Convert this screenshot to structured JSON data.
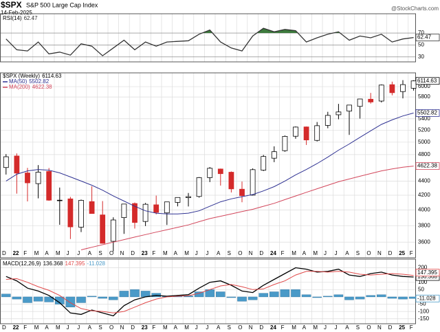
{
  "header": {
    "symbol": "$SPX",
    "name": "S&P 500 Large Cap Index",
    "date": "14-Feb-2025",
    "source": "@StockCharts.com"
  },
  "chart_data": [
    {
      "type": "line",
      "title": "RSI(14)",
      "ylim": [
        24,
        100
      ],
      "yticks": [
        30,
        50,
        70
      ],
      "overbought": 70,
      "overbought_color": "#3d7a3d",
      "grid": true,
      "series": [
        {
          "name": "RSI(14)",
          "color": "#333333",
          "values": [
            60,
            42,
            40,
            55,
            35,
            38,
            33,
            52,
            48,
            32,
            45,
            58,
            42,
            55,
            48,
            55,
            56,
            57,
            68,
            75,
            55,
            45,
            40,
            65,
            78,
            72,
            76,
            74,
            55,
            62,
            68,
            72,
            58,
            65,
            62,
            68,
            55,
            60,
            62.47
          ]
        }
      ]
    },
    {
      "type": "candlestick",
      "log_scale": true,
      "grid": true,
      "ylim": [
        3490,
        6180
      ],
      "yticks": [
        3600,
        3800,
        4000,
        4200,
        4400,
        4800,
        5000,
        5200,
        5400,
        5800,
        6000
      ],
      "categories": [
        "D",
        "22",
        "F",
        "M",
        "A",
        "M",
        "J",
        "J",
        "A",
        "S",
        "O",
        "N",
        "D",
        "23",
        "F",
        "M",
        "A",
        "M",
        "J",
        "J",
        "A",
        "S",
        "O",
        "N",
        "D",
        "24",
        "F",
        "M",
        "A",
        "M",
        "J",
        "J",
        "A",
        "S",
        "O",
        "N",
        "D",
        "25",
        "F"
      ],
      "candles": {
        "name": "$SPX (Weekly)",
        "up_color": "#000000",
        "down_color": "#d42a2a",
        "open": [
          4600,
          4778,
          4519,
          4363,
          4541,
          4130,
          4150,
          3781,
          4113,
          3937,
          3610,
          3902,
          4087,
          3853,
          4070,
          3963,
          4102,
          4166,
          4183,
          4450,
          4578,
          4530,
          4284,
          4201,
          4560,
          4743,
          4862,
          5098,
          5257,
          5029,
          5283,
          5471,
          5537,
          5624,
          5758,
          5723,
          6040,
          5904,
          5969
        ],
        "high": [
          4808,
          4818,
          4595,
          4637,
          4593,
          4307,
          4177,
          4140,
          4325,
          4120,
          3906,
          4080,
          4101,
          4095,
          4195,
          4110,
          4170,
          4231,
          4458,
          4607,
          4584,
          4541,
          4393,
          4587,
          4794,
          4932,
          5111,
          5265,
          5264,
          5342,
          5524,
          5670,
          5652,
          5767,
          5878,
          6044,
          6100,
          6129,
          6128
        ],
        "low": [
          4495,
          4222,
          4115,
          4157,
          4124,
          3811,
          3637,
          3721,
          3955,
          3585,
          3492,
          3699,
          3764,
          3795,
          3944,
          3809,
          4049,
          4048,
          4167,
          4385,
          4335,
          4238,
          4104,
          4197,
          4547,
          4682,
          4845,
          5056,
          4954,
          5012,
          5234,
          5390,
          5120,
          5403,
          5675,
          5697,
          5832,
          5774,
          5923
        ],
        "close": [
          4766,
          4516,
          4374,
          4530,
          4132,
          4132,
          3785,
          4130,
          3955,
          3586,
          3872,
          4080,
          3840,
          4077,
          3970,
          4109,
          4169,
          4180,
          4450,
          4589,
          4508,
          4288,
          4194,
          4568,
          4770,
          4846,
          5096,
          5254,
          5036,
          5278,
          5460,
          5522,
          5648,
          5762,
          5705,
          6032,
          5882,
          6041,
          6114.63
        ]
      },
      "series": [
        {
          "name": "MA(50)",
          "color": "#2e3192",
          "values": [
            4400,
            4500,
            4550,
            4570,
            4560,
            4520,
            4460,
            4400,
            4340,
            4270,
            4190,
            4120,
            4050,
            3990,
            3960,
            3950,
            3950,
            3960,
            3990,
            4050,
            4110,
            4150,
            4180,
            4210,
            4260,
            4320,
            4400,
            4490,
            4570,
            4660,
            4760,
            4870,
            4970,
            5080,
            5190,
            5300,
            5380,
            5450,
            5502.82
          ]
        },
        {
          "name": "MA(200)",
          "color": "#d2455a",
          "values": [
            null,
            null,
            null,
            null,
            null,
            null,
            null,
            3510,
            3540,
            3570,
            3600,
            3630,
            3660,
            3690,
            3720,
            3750,
            3780,
            3810,
            3850,
            3890,
            3920,
            3950,
            3980,
            4010,
            4050,
            4090,
            4140,
            4190,
            4240,
            4290,
            4340,
            4390,
            4430,
            4470,
            4510,
            4550,
            4580,
            4605,
            4622.38
          ]
        }
      ]
    },
    {
      "type": "line",
      "title": "MACD(12,26,9)",
      "grid": true,
      "ylim": [
        -170,
        240
      ],
      "yticks": [
        -150,
        -100,
        -50,
        50,
        100,
        200
      ],
      "categories": [
        "D",
        "22",
        "F",
        "M",
        "A",
        "M",
        "J",
        "J",
        "A",
        "S",
        "O",
        "N",
        "D",
        "23",
        "F",
        "M",
        "A",
        "M",
        "J",
        "J",
        "A",
        "S",
        "O",
        "N",
        "D",
        "24",
        "F",
        "M",
        "A",
        "M",
        "J",
        "J",
        "A",
        "S",
        "O",
        "N",
        "D",
        "25",
        "F"
      ],
      "series": [
        {
          "name": "MACD(12,26,9)",
          "color": "#000000",
          "values": [
            140,
            110,
            60,
            40,
            10,
            -40,
            -110,
            -120,
            -90,
            -110,
            -130,
            -60,
            -20,
            0,
            10,
            5,
            10,
            15,
            60,
            100,
            110,
            80,
            40,
            30,
            80,
            120,
            160,
            200,
            190,
            170,
            175,
            190,
            150,
            140,
            160,
            170,
            150,
            140,
            136.368
          ]
        },
        {
          "color": "#e04848",
          "values": [
            120,
            125,
            100,
            70,
            45,
            10,
            -40,
            -80,
            -95,
            -100,
            -110,
            -100,
            -70,
            -40,
            -15,
            0,
            5,
            8,
            25,
            50,
            75,
            85,
            70,
            50,
            55,
            85,
            110,
            150,
            175,
            175,
            170,
            175,
            170,
            155,
            150,
            155,
            160,
            155,
            147.395
          ]
        },
        {
          "type": "bar",
          "color": "#4a9ac8",
          "values": [
            20,
            -15,
            -40,
            -30,
            -35,
            -50,
            -70,
            -40,
            5,
            -10,
            -20,
            40,
            50,
            40,
            25,
            5,
            5,
            7,
            35,
            50,
            35,
            -5,
            -30,
            -20,
            25,
            35,
            50,
            50,
            15,
            -5,
            5,
            15,
            -20,
            -15,
            10,
            15,
            -10,
            -15,
            -11.028
          ]
        }
      ]
    }
  ]
}
